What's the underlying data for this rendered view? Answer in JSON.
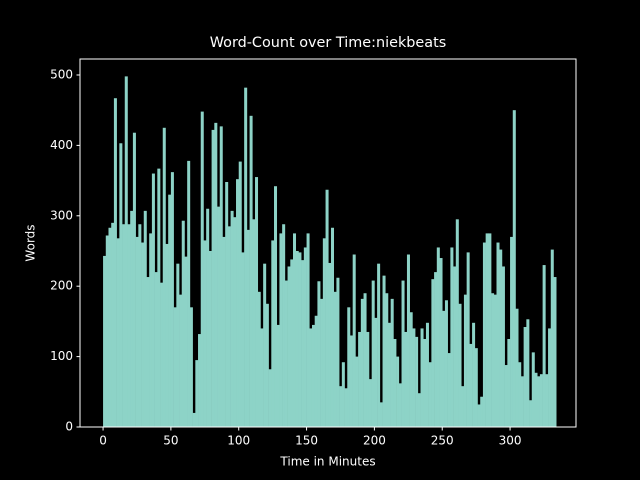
{
  "chart_data": {
    "type": "bar",
    "title": "Word-Count over Time:niekbeats",
    "x_label": "Time in Minutes",
    "y_label": "Words",
    "color": "#8dd3c7",
    "x": [
      0,
      2,
      4,
      6,
      8,
      10,
      12,
      14,
      16,
      18,
      20,
      22,
      24,
      26,
      28,
      30,
      32,
      34,
      36,
      38,
      40,
      42,
      44,
      46,
      48,
      50,
      52,
      54,
      56,
      58,
      60,
      62,
      64,
      66,
      68,
      70,
      72,
      74,
      76,
      78,
      80,
      82,
      84,
      86,
      88,
      90,
      92,
      94,
      96,
      98,
      100,
      102,
      104,
      106,
      108,
      110,
      112,
      114,
      116,
      118,
      120,
      122,
      124,
      126,
      128,
      130,
      132,
      134,
      136,
      138,
      140,
      142,
      144,
      146,
      148,
      150,
      152,
      154,
      156,
      158,
      160,
      162,
      164,
      166,
      168,
      170,
      172,
      174,
      176,
      178,
      180,
      182,
      184,
      186,
      188,
      190,
      192,
      194,
      196,
      198,
      200,
      202,
      204,
      206,
      208,
      210,
      212,
      214,
      216,
      218,
      220,
      222,
      224,
      226,
      228,
      230,
      232,
      234,
      236,
      238,
      240,
      242,
      244,
      246,
      248,
      250,
      252,
      254,
      256,
      258,
      260,
      262,
      264,
      266,
      268,
      270,
      272,
      274,
      276,
      278,
      280,
      282,
      284,
      286,
      288,
      290,
      292,
      294,
      296,
      298,
      300,
      302,
      304,
      306,
      308,
      310,
      312,
      314,
      316,
      318,
      320,
      322,
      324,
      326,
      328,
      330,
      332
    ],
    "values": [
      243,
      272,
      283,
      290,
      467,
      268,
      403,
      288,
      498,
      288,
      307,
      418,
      270,
      288,
      262,
      307,
      213,
      275,
      360,
      220,
      367,
      205,
      425,
      260,
      330,
      362,
      170,
      232,
      188,
      293,
      242,
      378,
      170,
      20,
      95,
      132,
      448,
      265,
      310,
      250,
      422,
      432,
      313,
      427,
      270,
      348,
      285,
      307,
      298,
      352,
      377,
      248,
      482,
      280,
      442,
      295,
      355,
      192,
      140,
      232,
      175,
      82,
      265,
      342,
      145,
      275,
      288,
      208,
      228,
      238,
      275,
      250,
      248,
      237,
      255,
      275,
      140,
      145,
      158,
      207,
      182,
      268,
      337,
      233,
      283,
      192,
      212,
      58,
      92,
      55,
      170,
      130,
      245,
      100,
      135,
      182,
      190,
      135,
      68,
      208,
      155,
      232,
      35,
      215,
      190,
      148,
      182,
      125,
      100,
      62,
      208,
      135,
      245,
      163,
      140,
      128,
      48,
      140,
      125,
      148,
      92,
      210,
      220,
      255,
      240,
      165,
      180,
      105,
      255,
      228,
      295,
      175,
      58,
      188,
      248,
      118,
      148,
      112,
      32,
      43,
      262,
      275,
      275,
      190,
      188,
      262,
      252,
      228,
      88,
      125,
      270,
      450,
      168,
      92,
      72,
      142,
      153,
      38,
      106,
      77,
      72,
      75,
      230,
      75,
      140,
      252,
      213
    ],
    "xlim": [
      -17,
      348.6
    ],
    "ylim": [
      0,
      522.7
    ],
    "xticks": [
      0,
      50,
      100,
      150,
      200,
      250,
      300
    ],
    "yticks": [
      0,
      100,
      200,
      300,
      400,
      500
    ]
  }
}
